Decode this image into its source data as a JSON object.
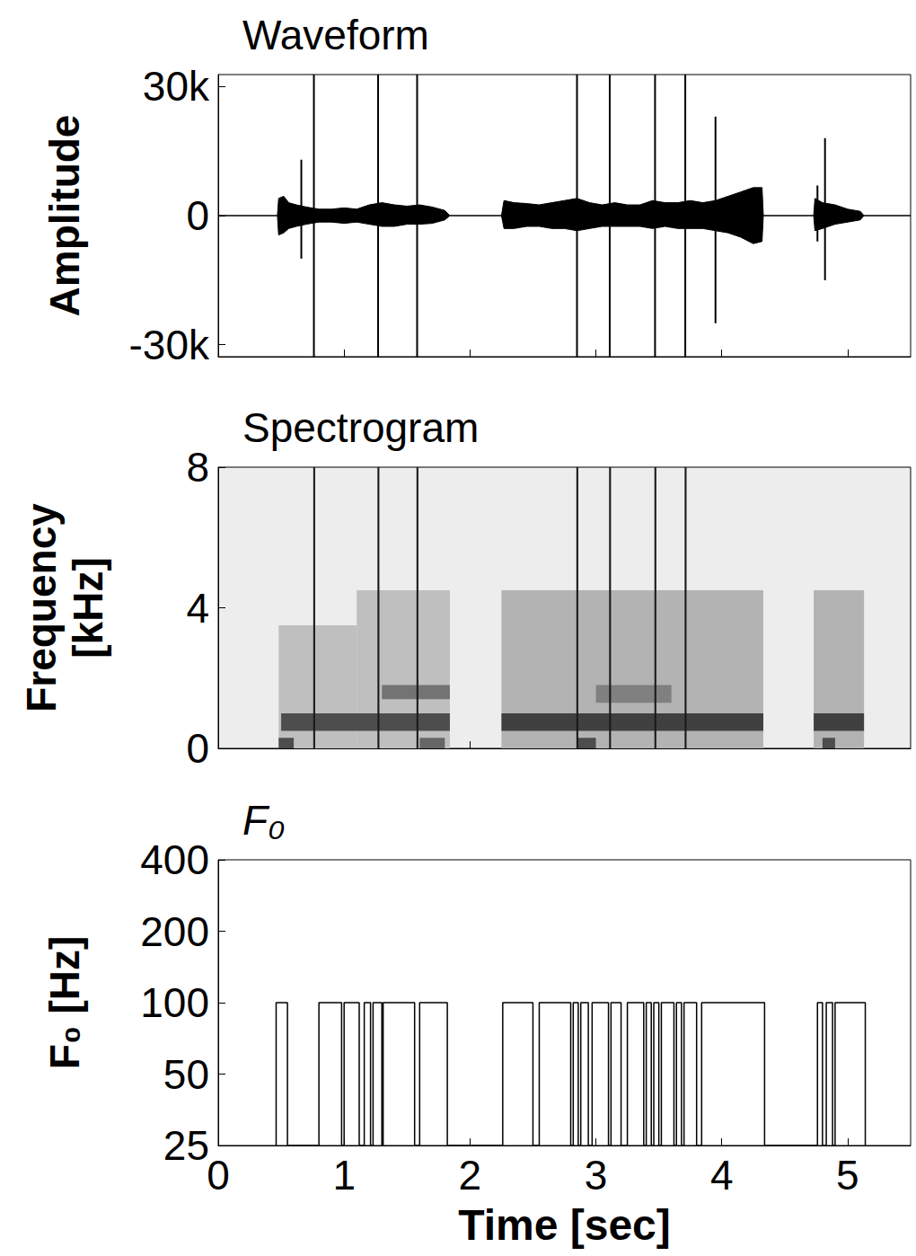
{
  "chart_data": [
    {
      "type": "area",
      "title": "Waveform",
      "y_label": "Amplitude",
      "xlim": [
        0,
        5.5
      ],
      "xticks": [
        0,
        1,
        2,
        3,
        4,
        5
      ],
      "ylim": [
        -32768,
        32767
      ],
      "yticks": [
        {
          "value": -30000,
          "label": "-30k"
        },
        0,
        {
          "value": 30000,
          "label": "30k"
        }
      ],
      "tick_labels": "y",
      "x": [
        0,
        0.47,
        0.48,
        0.52,
        0.56,
        0.62,
        0.7,
        0.8,
        0.9,
        1.0,
        1.1,
        1.2,
        1.3,
        1.4,
        1.5,
        1.6,
        1.7,
        1.8,
        1.84,
        2.25,
        2.27,
        2.35,
        2.45,
        2.55,
        2.65,
        2.75,
        2.85,
        2.95,
        3.05,
        3.15,
        3.25,
        3.35,
        3.45,
        3.55,
        3.65,
        3.75,
        3.85,
        3.95,
        4.05,
        4.15,
        4.25,
        4.32,
        4.33,
        4.73,
        4.74,
        4.8,
        4.9,
        5.0,
        5.1,
        5.13,
        5.5
      ],
      "series": [
        {
          "color": "#000000",
          "values": [
            0,
            0,
            4000,
            4500,
            3000,
            2500,
            2000,
            1500,
            1500,
            1800,
            1500,
            2500,
            3000,
            2500,
            2200,
            2500,
            2000,
            1200,
            0,
            0,
            3500,
            3000,
            2800,
            2500,
            3000,
            3500,
            4000,
            3000,
            2500,
            3000,
            2500,
            2500,
            3500,
            3000,
            3000,
            3500,
            3000,
            3500,
            4500,
            5500,
            6500,
            6500,
            0,
            0,
            4000,
            3000,
            2500,
            1500,
            1000,
            0,
            0
          ]
        },
        {
          "color": "#000000",
          "values": [
            0,
            0,
            -4500,
            -4000,
            -3000,
            -2500,
            -2000,
            -1500,
            -1500,
            -1800,
            -1500,
            -2000,
            -2500,
            -2500,
            -2000,
            -2000,
            -1800,
            -1000,
            0,
            0,
            -3000,
            -3000,
            -2500,
            -2500,
            -3000,
            -3000,
            -3500,
            -3000,
            -2500,
            -2500,
            -2500,
            -2500,
            -3000,
            -2500,
            -3000,
            -3000,
            -3000,
            -3500,
            -4000,
            -5000,
            -6500,
            -6000,
            0,
            0,
            -3500,
            -3000,
            -2000,
            -1500,
            -1000,
            0,
            0
          ]
        }
      ],
      "spikes": [
        {
          "x": 0.66,
          "low": -10000,
          "high": 13000
        },
        {
          "x": 0.76,
          "low": -32768,
          "high": 32767
        },
        {
          "x": 1.27,
          "low": -32768,
          "high": 32767
        },
        {
          "x": 1.58,
          "low": -32768,
          "high": 32767
        },
        {
          "x": 2.85,
          "low": -32768,
          "high": 32767
        },
        {
          "x": 3.11,
          "low": -32768,
          "high": 32767
        },
        {
          "x": 3.47,
          "low": -32768,
          "high": 32767
        },
        {
          "x": 3.71,
          "low": -32768,
          "high": 32767
        },
        {
          "x": 3.95,
          "low": -25000,
          "high": 23000
        },
        {
          "x": 4.76,
          "low": -6000,
          "high": 7000
        },
        {
          "x": 4.82,
          "low": -15000,
          "high": 18000
        }
      ]
    },
    {
      "type": "spectrogram",
      "title": "Spectrogram",
      "y_label": "Frequency\n[kHz]",
      "xlim": [
        0,
        5.5
      ],
      "xticks": [
        0,
        1,
        2,
        3,
        4,
        5
      ],
      "ylim": [
        0,
        8
      ],
      "yticks": [
        0,
        4,
        8
      ],
      "tick_labels": "y",
      "color": "#000000",
      "cells": [
        [
          0.48,
          1.1,
          0,
          3.5,
          0.25
        ],
        [
          1.1,
          1.84,
          0,
          4.5,
          0.25
        ],
        [
          2.25,
          4.33,
          0,
          4.5,
          0.3
        ],
        [
          4.73,
          5.13,
          0,
          4.5,
          0.3
        ],
        [
          0.5,
          1.84,
          0.5,
          1.0,
          0.7
        ],
        [
          2.25,
          4.33,
          0.5,
          1.0,
          0.75
        ],
        [
          4.73,
          5.13,
          0.5,
          1.0,
          0.75
        ],
        [
          1.3,
          1.84,
          1.4,
          1.8,
          0.55
        ],
        [
          3.0,
          3.6,
          1.3,
          1.8,
          0.5
        ],
        [
          0.48,
          0.6,
          0,
          0.3,
          0.7
        ],
        [
          1.6,
          1.8,
          0,
          0.3,
          0.6
        ],
        [
          2.85,
          3.0,
          0,
          0.3,
          0.7
        ],
        [
          4.8,
          4.9,
          0,
          0.3,
          0.7
        ],
        [
          0.755,
          0.77,
          0,
          8,
          0.9
        ],
        [
          1.265,
          1.28,
          0,
          8,
          0.9
        ],
        [
          1.575,
          1.59,
          0,
          8,
          0.9
        ],
        [
          2.845,
          2.86,
          0,
          8,
          0.9
        ],
        [
          3.105,
          3.12,
          0,
          8,
          0.9
        ],
        [
          3.465,
          3.48,
          0,
          8,
          0.9
        ],
        [
          3.705,
          3.72,
          0,
          8,
          0.9
        ]
      ]
    },
    {
      "type": "line",
      "title": "F₀",
      "y_label": "F₀ [Hz]",
      "x_label": "Time [sec]",
      "log": "y",
      "xlim": [
        0,
        5.5
      ],
      "xticks": [
        0,
        1,
        2,
        3,
        4,
        5
      ],
      "ylim": [
        25,
        400
      ],
      "yticks": [
        25,
        50,
        100,
        200,
        400
      ],
      "tick_labels": true,
      "x": [
        0.46,
        0.46,
        0.55,
        0.55,
        0.8,
        0.8,
        0.98,
        0.98,
        1.0,
        1.0,
        1.12,
        1.12,
        1.16,
        1.16,
        1.21,
        1.21,
        1.23,
        1.23,
        1.3,
        1.3,
        1.31,
        1.31,
        1.56,
        1.56,
        1.6,
        1.6,
        1.82,
        1.82,
        2.26,
        2.26,
        2.5,
        2.5,
        2.55,
        2.55,
        2.8,
        2.8,
        2.82,
        2.82,
        2.86,
        2.86,
        2.88,
        2.88,
        2.94,
        2.94,
        2.97,
        2.97,
        3.1,
        3.1,
        3.12,
        3.12,
        3.2,
        3.2,
        3.25,
        3.25,
        3.38,
        3.38,
        3.4,
        3.4,
        3.44,
        3.44,
        3.46,
        3.46,
        3.5,
        3.5,
        3.52,
        3.52,
        3.62,
        3.62,
        3.64,
        3.64,
        3.68,
        3.68,
        3.7,
        3.7,
        3.8,
        3.8,
        3.84,
        3.84,
        4.34,
        4.34,
        4.76,
        4.76,
        4.8,
        4.8,
        4.83,
        4.83,
        4.88,
        4.88,
        4.9,
        4.9,
        5.14,
        5.14
      ],
      "series": [
        {
          "color": "#000000",
          "values": [
            25,
            100,
            100,
            25,
            25,
            100,
            100,
            25,
            25,
            100,
            100,
            25,
            25,
            100,
            100,
            25,
            25,
            100,
            100,
            25,
            25,
            100,
            100,
            25,
            25,
            100,
            100,
            25,
            25,
            100,
            100,
            25,
            25,
            100,
            100,
            25,
            25,
            100,
            100,
            25,
            25,
            100,
            100,
            25,
            25,
            100,
            100,
            25,
            25,
            100,
            100,
            25,
            25,
            100,
            100,
            25,
            25,
            100,
            100,
            25,
            25,
            100,
            100,
            25,
            25,
            100,
            100,
            25,
            25,
            100,
            100,
            25,
            25,
            100,
            100,
            25,
            25,
            100,
            100,
            25,
            25,
            100,
            100,
            25,
            25,
            100,
            100,
            25,
            25,
            100,
            100,
            25
          ]
        }
      ]
    }
  ]
}
